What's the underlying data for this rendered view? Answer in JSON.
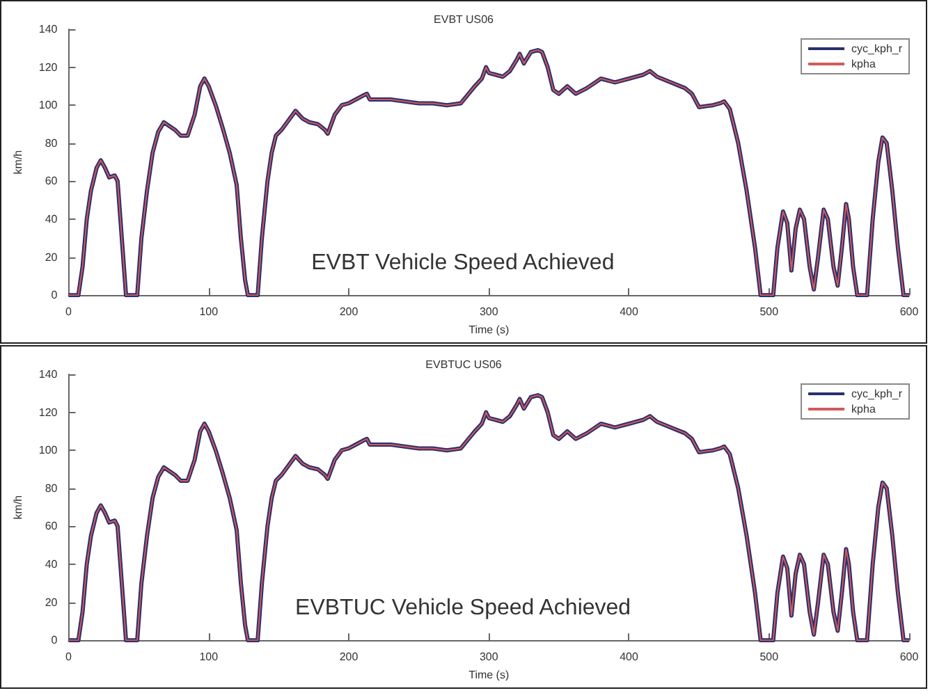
{
  "chart_data": [
    {
      "type": "line",
      "title": "EVBT US06",
      "xlabel": "Time (s)",
      "ylabel": "km/h",
      "annotations": [
        "EVBT Vehicle Speed Achieved"
      ],
      "xlim": [
        0,
        600
      ],
      "xticks": [
        0,
        100,
        200,
        300,
        400,
        500,
        600
      ],
      "ylim": [
        0,
        140
      ],
      "yticks": [
        0,
        20,
        40,
        60,
        80,
        100,
        120,
        140
      ],
      "grid": false,
      "legend": "top right",
      "marker": "none",
      "line_style": "solid",
      "x": [
        0,
        7,
        10,
        13,
        16,
        20,
        23,
        26,
        29,
        33,
        35,
        38,
        41,
        49,
        52,
        56,
        60,
        64,
        68,
        72,
        76,
        80,
        85,
        90,
        94,
        97,
        100,
        105,
        110,
        115,
        120,
        123,
        126,
        128,
        135,
        138,
        142,
        145,
        148,
        152,
        157,
        162,
        167,
        172,
        178,
        183,
        185,
        190,
        195,
        200,
        205,
        210,
        213,
        215,
        220,
        230,
        240,
        250,
        260,
        270,
        280,
        290,
        295,
        298,
        300,
        305,
        310,
        315,
        320,
        322,
        325,
        330,
        335,
        338,
        342,
        346,
        350,
        356,
        362,
        370,
        380,
        390,
        400,
        410,
        415,
        420,
        430,
        440,
        445,
        450,
        460,
        465,
        468,
        472,
        478,
        484,
        490,
        494,
        503,
        506,
        510,
        513,
        516,
        519,
        522,
        525,
        529,
        532,
        535,
        539,
        542,
        546,
        549,
        552,
        555,
        557,
        560,
        563,
        570,
        574,
        578,
        581,
        584,
        588,
        592,
        596,
        600
      ],
      "series": [
        {
          "name": "cyc_kph_r",
          "color": "#2a2f6e",
          "values": [
            0,
            0,
            15,
            40,
            55,
            67,
            71,
            67,
            62,
            63,
            60,
            30,
            0,
            0,
            30,
            55,
            75,
            86,
            91,
            89,
            87,
            84,
            84,
            95,
            110,
            114,
            110,
            100,
            88,
            75,
            58,
            30,
            8,
            0,
            0,
            30,
            60,
            75,
            84,
            87,
            92,
            97,
            93,
            91,
            90,
            87,
            85,
            95,
            100,
            101,
            103,
            105,
            106,
            103,
            103,
            103,
            102,
            101,
            101,
            100,
            101,
            110,
            114,
            120,
            117,
            116,
            115,
            118,
            124,
            127,
            122,
            128,
            129,
            128,
            120,
            108,
            106,
            110,
            106,
            109,
            114,
            112,
            114,
            116,
            118,
            115,
            112,
            109,
            106,
            99,
            100,
            101,
            102,
            98,
            80,
            55,
            25,
            0,
            0,
            25,
            44,
            38,
            13,
            35,
            45,
            40,
            15,
            3,
            20,
            45,
            40,
            15,
            5,
            25,
            48,
            40,
            15,
            0,
            0,
            40,
            70,
            83,
            80,
            55,
            25,
            0,
            0
          ]
        },
        {
          "name": "kpha",
          "color": "#d05a5a",
          "values": [
            0,
            0,
            15,
            40,
            55,
            67,
            71,
            67,
            62,
            63,
            60,
            30,
            0,
            0,
            30,
            55,
            75,
            86,
            91,
            89,
            87,
            84,
            84,
            95,
            110,
            114,
            110,
            100,
            88,
            75,
            58,
            30,
            8,
            0,
            0,
            30,
            60,
            75,
            84,
            87,
            92,
            97,
            93,
            91,
            90,
            87,
            85,
            95,
            100,
            101,
            103,
            105,
            106,
            103,
            103,
            103,
            102,
            101,
            101,
            100,
            101,
            110,
            114,
            120,
            117,
            116,
            115,
            118,
            124,
            127,
            122,
            128,
            129,
            128,
            120,
            108,
            106,
            110,
            106,
            109,
            114,
            112,
            114,
            116,
            118,
            115,
            112,
            109,
            106,
            99,
            100,
            101,
            102,
            98,
            80,
            55,
            25,
            0,
            0,
            25,
            44,
            38,
            13,
            35,
            45,
            40,
            15,
            3,
            20,
            45,
            40,
            15,
            5,
            25,
            48,
            40,
            15,
            0,
            0,
            40,
            70,
            83,
            80,
            55,
            25,
            0,
            0
          ]
        }
      ]
    },
    {
      "type": "line",
      "title": "EVBTUC US06",
      "xlabel": "Time (s)",
      "ylabel": "km/h",
      "annotations": [
        "EVBTUC Vehicle Speed Achieved"
      ],
      "xlim": [
        0,
        600
      ],
      "xticks": [
        0,
        100,
        200,
        300,
        400,
        500,
        600
      ],
      "ylim": [
        0,
        140
      ],
      "yticks": [
        0,
        20,
        40,
        60,
        80,
        100,
        120,
        140
      ],
      "grid": false,
      "legend": "top right",
      "marker": "none",
      "line_style": "solid",
      "x": [
        0,
        7,
        10,
        13,
        16,
        20,
        23,
        26,
        29,
        33,
        35,
        38,
        41,
        49,
        52,
        56,
        60,
        64,
        68,
        72,
        76,
        80,
        85,
        90,
        94,
        97,
        100,
        105,
        110,
        115,
        120,
        123,
        126,
        128,
        135,
        138,
        142,
        145,
        148,
        152,
        157,
        162,
        167,
        172,
        178,
        183,
        185,
        190,
        195,
        200,
        205,
        210,
        213,
        215,
        220,
        230,
        240,
        250,
        260,
        270,
        280,
        290,
        295,
        298,
        300,
        305,
        310,
        315,
        320,
        322,
        325,
        330,
        335,
        338,
        342,
        346,
        350,
        356,
        362,
        370,
        380,
        390,
        400,
        410,
        415,
        420,
        430,
        440,
        445,
        450,
        460,
        465,
        468,
        472,
        478,
        484,
        490,
        494,
        503,
        506,
        510,
        513,
        516,
        519,
        522,
        525,
        529,
        532,
        535,
        539,
        542,
        546,
        549,
        552,
        555,
        557,
        560,
        563,
        570,
        574,
        578,
        581,
        584,
        588,
        592,
        596,
        600
      ],
      "series": [
        {
          "name": "cyc_kph_r",
          "color": "#2a2f6e",
          "values": [
            0,
            0,
            15,
            40,
            55,
            67,
            71,
            67,
            62,
            63,
            60,
            30,
            0,
            0,
            30,
            55,
            75,
            86,
            91,
            89,
            87,
            84,
            84,
            95,
            110,
            114,
            110,
            100,
            88,
            75,
            58,
            30,
            8,
            0,
            0,
            30,
            60,
            75,
            84,
            87,
            92,
            97,
            93,
            91,
            90,
            87,
            85,
            95,
            100,
            101,
            103,
            105,
            106,
            103,
            103,
            103,
            102,
            101,
            101,
            100,
            101,
            110,
            114,
            120,
            117,
            116,
            115,
            118,
            124,
            127,
            122,
            128,
            129,
            128,
            120,
            108,
            106,
            110,
            106,
            109,
            114,
            112,
            114,
            116,
            118,
            115,
            112,
            109,
            106,
            99,
            100,
            101,
            102,
            98,
            80,
            55,
            25,
            0,
            0,
            25,
            44,
            38,
            13,
            35,
            45,
            40,
            15,
            3,
            20,
            45,
            40,
            15,
            5,
            25,
            48,
            40,
            15,
            0,
            0,
            40,
            70,
            83,
            80,
            55,
            25,
            0,
            0
          ]
        },
        {
          "name": "kpha",
          "color": "#d05a5a",
          "values": [
            0,
            0,
            15,
            40,
            55,
            67,
            71,
            67,
            62,
            63,
            60,
            30,
            0,
            0,
            30,
            55,
            75,
            86,
            91,
            89,
            87,
            84,
            84,
            95,
            110,
            114,
            110,
            100,
            88,
            75,
            58,
            30,
            8,
            0,
            0,
            30,
            60,
            75,
            84,
            87,
            92,
            97,
            93,
            91,
            90,
            87,
            85,
            95,
            100,
            101,
            103,
            105,
            106,
            103,
            103,
            103,
            102,
            101,
            101,
            100,
            101,
            110,
            114,
            120,
            117,
            116,
            115,
            118,
            124,
            127,
            122,
            128,
            129,
            128,
            120,
            108,
            106,
            110,
            106,
            109,
            114,
            112,
            114,
            116,
            118,
            115,
            112,
            109,
            106,
            99,
            100,
            101,
            102,
            98,
            80,
            55,
            25,
            0,
            0,
            25,
            44,
            38,
            13,
            35,
            45,
            40,
            15,
            3,
            20,
            45,
            40,
            15,
            5,
            25,
            48,
            40,
            15,
            0,
            0,
            40,
            70,
            83,
            80,
            55,
            25,
            0,
            0
          ]
        }
      ]
    }
  ]
}
